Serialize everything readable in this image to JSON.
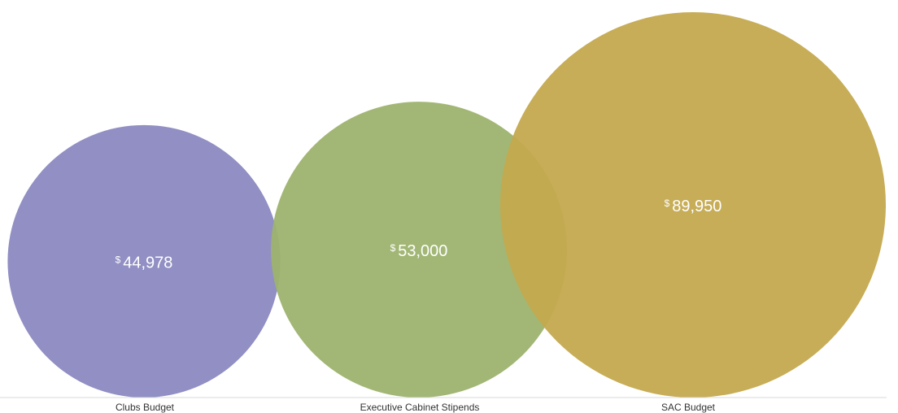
{
  "chart_data": {
    "type": "bubble",
    "title": "",
    "xlabel": "",
    "ylabel": "",
    "categories": [
      "Clubs Budget",
      "Executive Cabinet Stipends",
      "SAC Budget"
    ],
    "values": [
      44978,
      53000,
      89950
    ],
    "value_labels": [
      "44,978",
      "53,000",
      "89,950"
    ],
    "currency_symbol": "$",
    "colors": [
      "#8b89c0",
      "#9db36e",
      "#c4a94e"
    ],
    "legend": "none",
    "grid": false
  }
}
